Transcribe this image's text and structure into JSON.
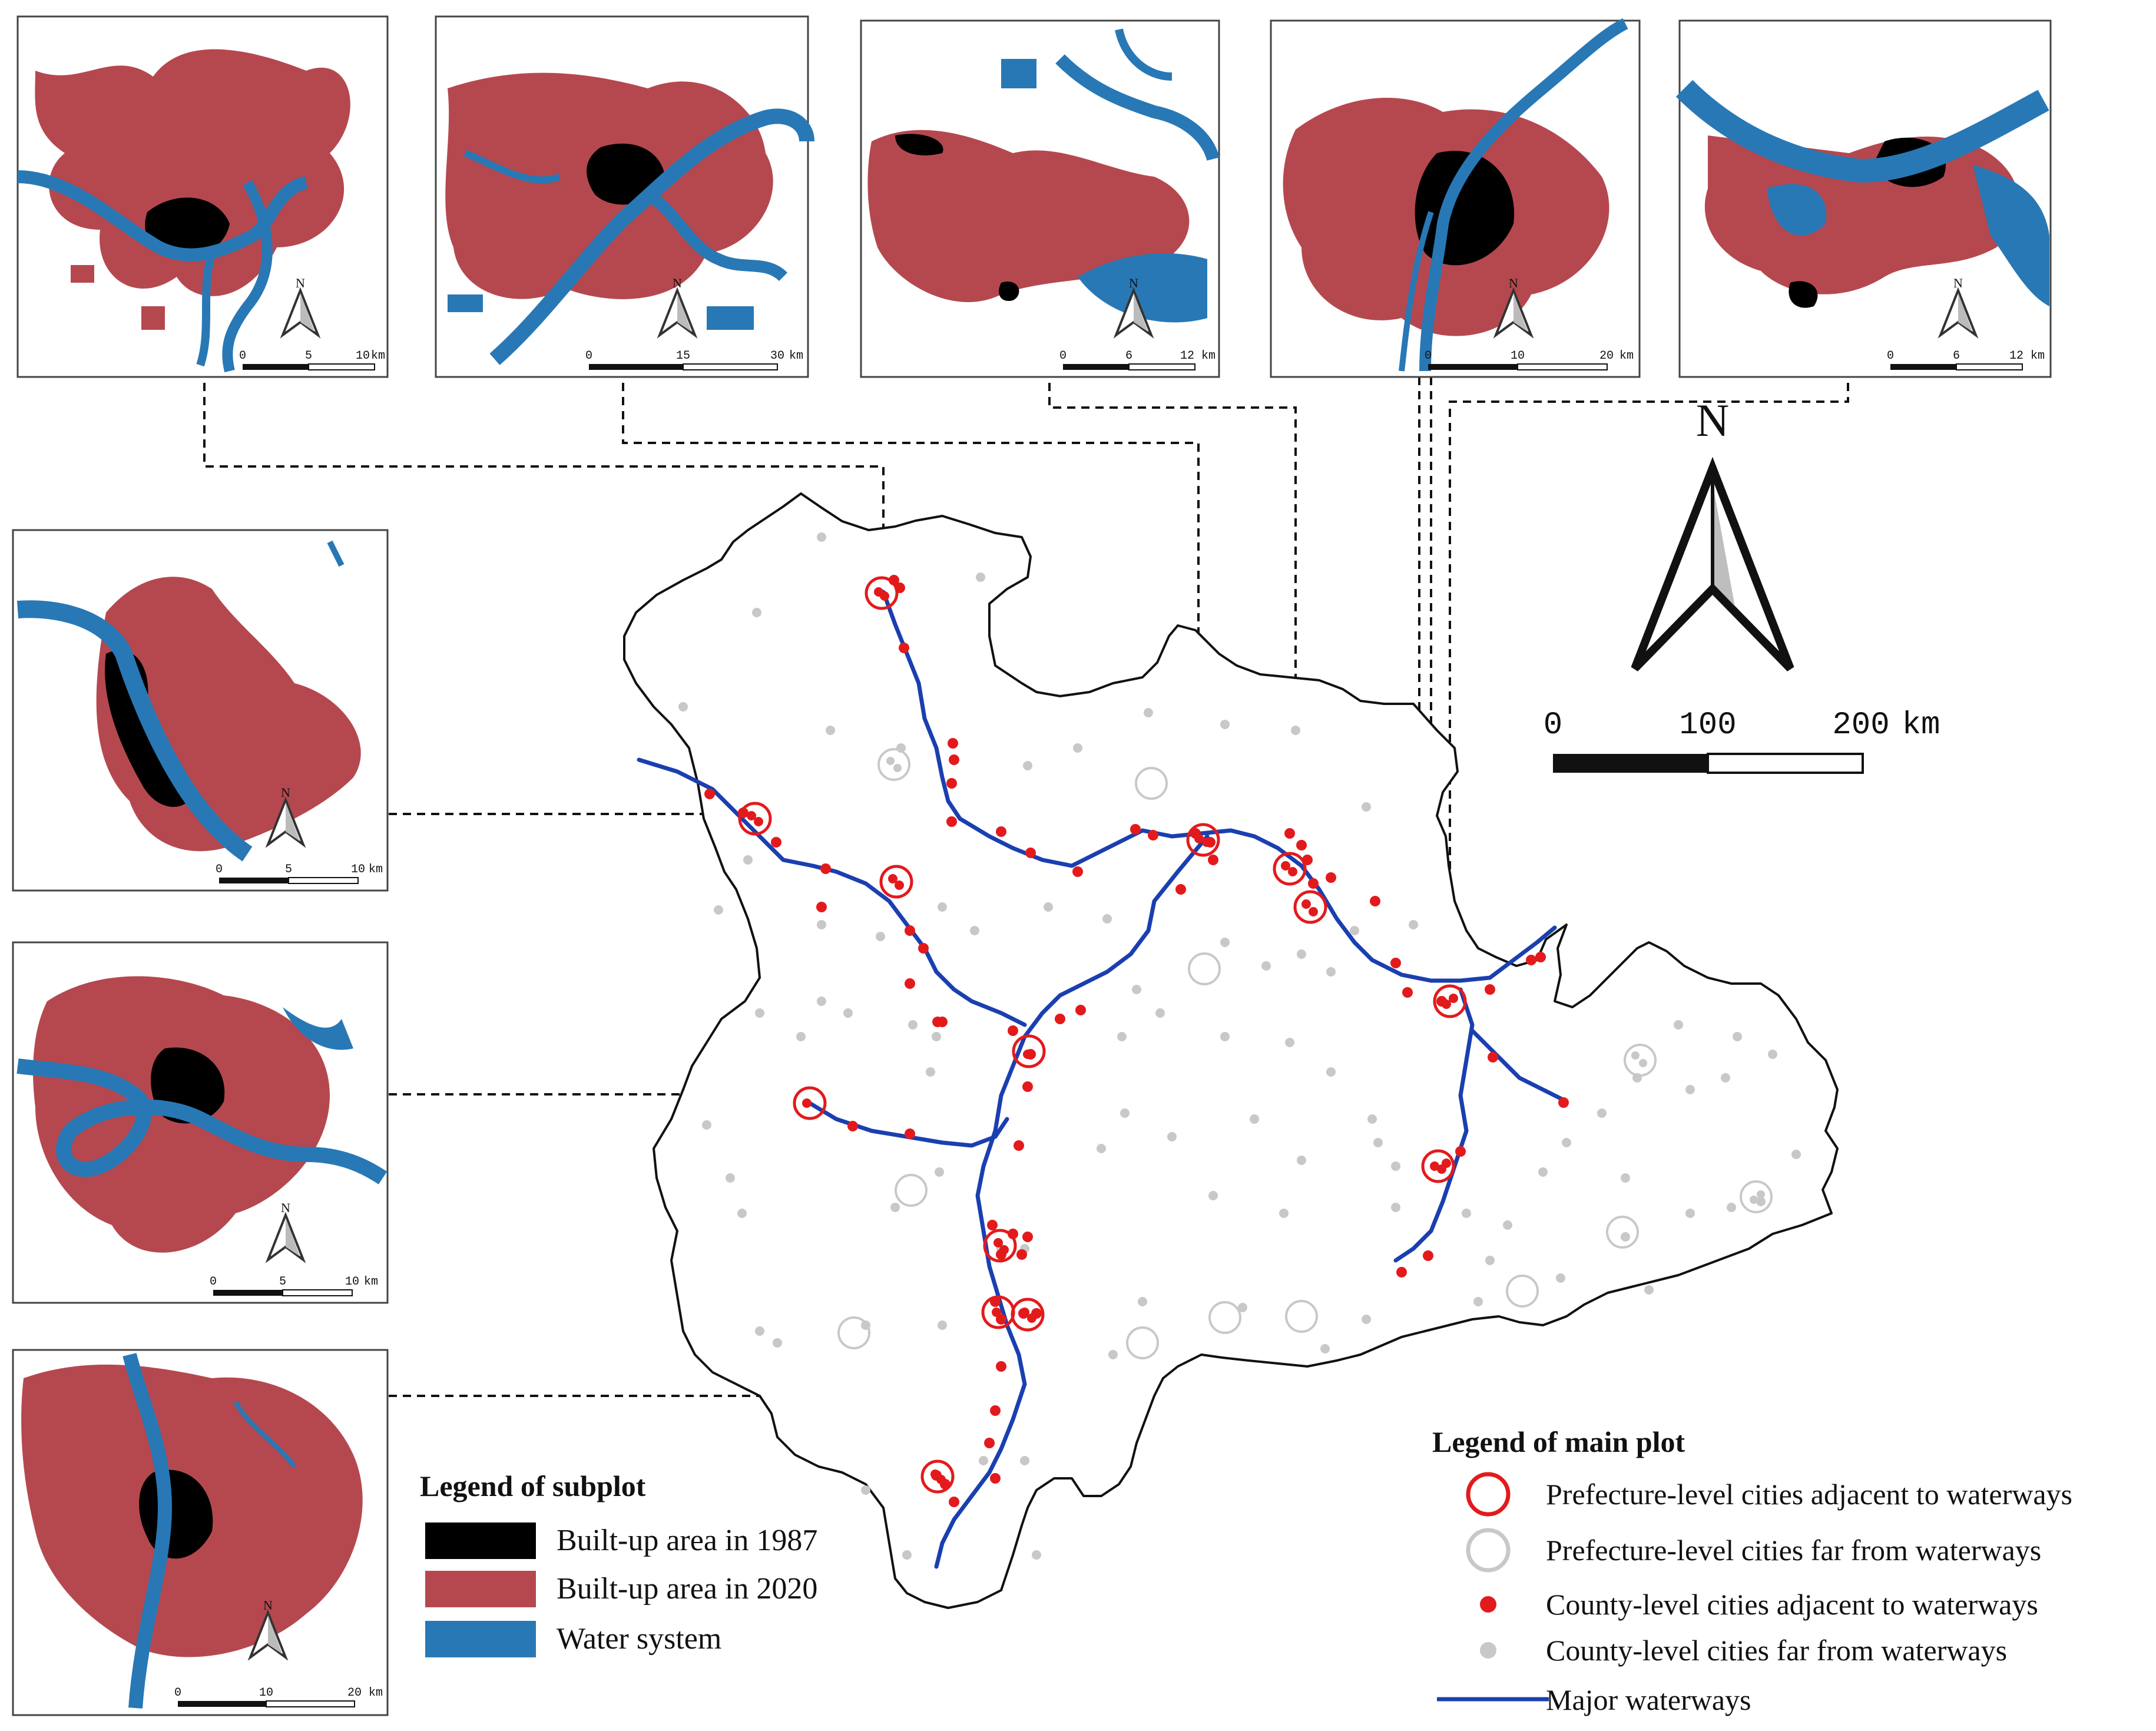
{
  "colors": {
    "built_1987": "#000000",
    "built_2020": "#b5484f",
    "water": "#2878b5",
    "waterway_line": "#1a3fb0",
    "red_city": "#e31a1c",
    "grey_city": "#c8c8c8",
    "boundary": "#111111"
  },
  "subplots": [
    {
      "id": "s1",
      "scale": {
        "zero": "0",
        "mid": "5",
        "end": "10",
        "unit": "km"
      }
    },
    {
      "id": "s2",
      "scale": {
        "zero": "0",
        "mid": "15",
        "end": "30",
        "unit": "km"
      }
    },
    {
      "id": "s3",
      "scale": {
        "zero": "0",
        "mid": "6",
        "end": "12",
        "unit": "km"
      }
    },
    {
      "id": "s4",
      "scale": {
        "zero": "0",
        "mid": "10",
        "end": "20",
        "unit": "km"
      }
    },
    {
      "id": "s5",
      "scale": {
        "zero": "0",
        "mid": "6",
        "end": "12",
        "unit": "km"
      }
    },
    {
      "id": "s6",
      "scale": {
        "zero": "0",
        "mid": "5",
        "end": "10",
        "unit": "km"
      }
    },
    {
      "id": "s7",
      "scale": {
        "zero": "0",
        "mid": "5",
        "end": "10",
        "unit": "km"
      }
    },
    {
      "id": "s8",
      "scale": {
        "zero": "0",
        "mid": "10",
        "end": "20",
        "unit": "km"
      }
    }
  ],
  "subplot_north_letter": "N",
  "main_map": {
    "north_letter": "N",
    "scale": {
      "zero": "0",
      "mid": "100",
      "end": "200",
      "unit": "km"
    }
  },
  "legend_subplot": {
    "title": "Legend of subplot",
    "items": [
      {
        "label": "Built-up area in 1987",
        "color": "#000000"
      },
      {
        "label": "Built-up area in 2020",
        "color": "#b5484f"
      },
      {
        "label": "Water system",
        "color": "#2878b5"
      }
    ]
  },
  "legend_main": {
    "title": "Legend of main plot",
    "items": [
      {
        "label": "Prefecture-level cities adjacent to waterways",
        "symbol": "red-ring"
      },
      {
        "label": "Prefecture-level cities far from waterways",
        "symbol": "grey-ring"
      },
      {
        "label": "County-level cities adjacent to waterways",
        "symbol": "red-dot"
      },
      {
        "label": "County-level cities far from waterways",
        "symbol": "grey-dot"
      },
      {
        "label": "Major waterways",
        "symbol": "blue-line"
      }
    ]
  }
}
